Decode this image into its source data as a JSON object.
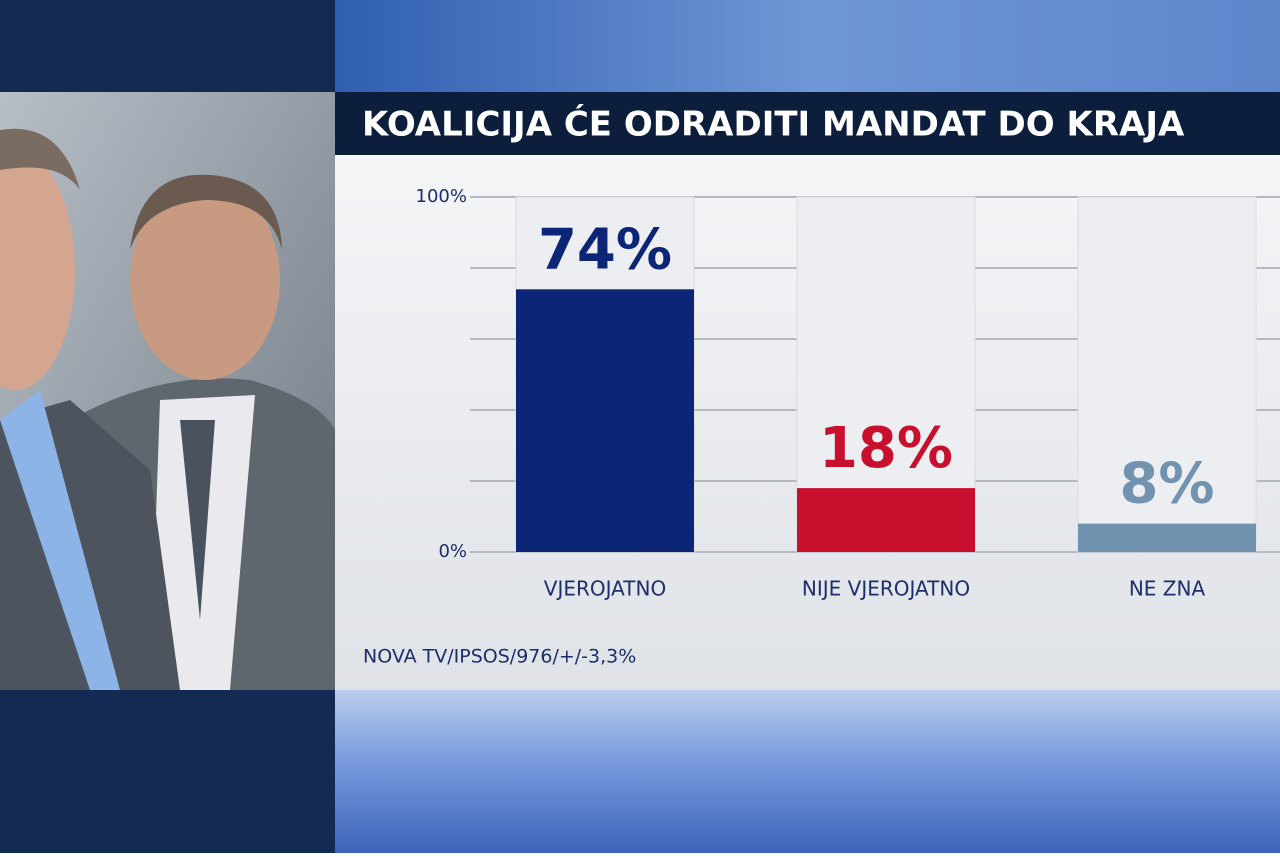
{
  "chart_data": {
    "type": "bar",
    "title": "KOALICIJA ĆE ODRADITI MANDAT DO KRAJA",
    "categories": [
      "VJEROJATNO",
      "NIJE VJEROJATNO",
      "NE ZNA"
    ],
    "values": [
      74,
      18,
      8
    ],
    "value_labels": [
      "74%",
      "18%",
      "8%"
    ],
    "colors": [
      "#0c2577",
      "#c8102e",
      "#7193b0"
    ],
    "ylim": [
      0,
      100
    ],
    "yticks": [
      {
        "value": 0,
        "label": "0%"
      },
      {
        "value": 20,
        "label": null
      },
      {
        "value": 40,
        "label": null
      },
      {
        "value": 60,
        "label": null
      },
      {
        "value": 80,
        "label": null
      },
      {
        "value": 100,
        "label": "100%"
      }
    ],
    "grid": true,
    "source": "NOVA TV/IPSOS/976/+/-3,3%"
  }
}
